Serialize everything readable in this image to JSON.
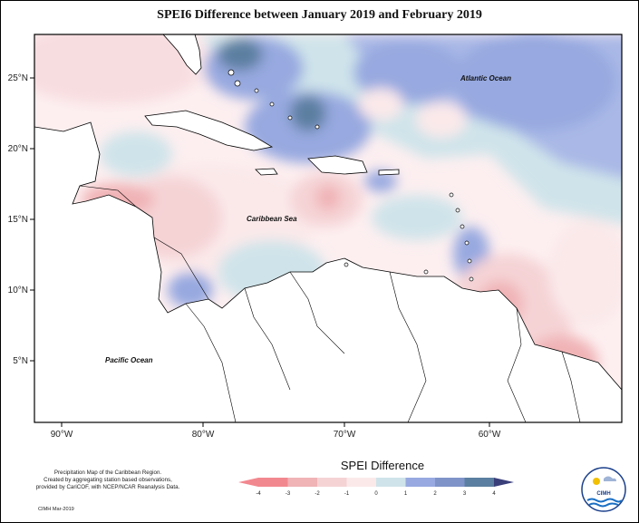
{
  "title": "SPEI6 Difference between January 2019 and February 2019",
  "map": {
    "lat_ticks": [
      "25°N",
      "20°N",
      "15°N",
      "10°N",
      "5°N"
    ],
    "lon_ticks": [
      "90°W",
      "80°W",
      "70°W",
      "60°W"
    ],
    "labels": {
      "atlantic": "Atlantic Ocean",
      "caribbean": "Caribbean Sea",
      "pacific": "Pacific Ocean"
    }
  },
  "legend": {
    "title": "SPEI Difference",
    "ticks": [
      "-4",
      "-3",
      "-2",
      "-1",
      "0",
      "1",
      "2",
      "3",
      "4"
    ],
    "colors": [
      "#f2888f",
      "#f0b3b6",
      "#f5d3d5",
      "#fbe9ea",
      "#cfe4ea",
      "#97a9e0",
      "#7f93c8",
      "#5b7fa0",
      "#3a3f7a"
    ]
  },
  "footnote": {
    "lines": [
      "Precipitation Map of the Caribbean Region.",
      "Created by aggregating station based observations,",
      "provided by CariCOF, with NCEP/NCAR Reanalysis Data."
    ],
    "credit": "CIMH Mar-2019"
  },
  "logo": {
    "text": "CIMH"
  }
}
